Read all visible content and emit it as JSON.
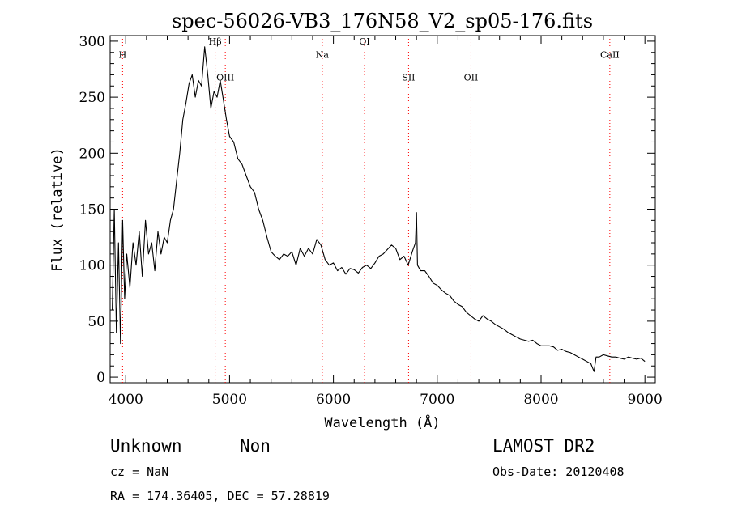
{
  "chart_data": {
    "type": "line",
    "title": "spec-56026-VB3_176N58_V2_sp05-176.fits",
    "xlabel": "Wavelength (Å)",
    "ylabel": "Flux (relative)",
    "xlim": [
      3850,
      9100
    ],
    "ylim": [
      -5,
      305
    ],
    "x_ticks": [
      4000,
      5000,
      6000,
      7000,
      8000,
      9000
    ],
    "y_ticks": [
      0,
      50,
      100,
      150,
      200,
      250,
      300
    ],
    "grid": false,
    "series": [
      {
        "x": [
          3870,
          3890,
          3910,
          3930,
          3950,
          3970,
          3990,
          4010,
          4040,
          4070,
          4100,
          4130,
          4160,
          4190,
          4220,
          4250,
          4280,
          4310,
          4340,
          4370,
          4400,
          4430,
          4460,
          4490,
          4520,
          4550,
          4580,
          4610,
          4640,
          4670,
          4700,
          4730,
          4760,
          4790,
          4820,
          4850,
          4880,
          4910,
          4940,
          4970,
          5000,
          5040,
          5080,
          5120,
          5160,
          5200,
          5240,
          5280,
          5320,
          5360,
          5400,
          5440,
          5480,
          5520,
          5560,
          5600,
          5640,
          5680,
          5720,
          5760,
          5800,
          5840,
          5880,
          5920,
          5960,
          6000,
          6040,
          6080,
          6120,
          6160,
          6200,
          6240,
          6280,
          6320,
          6360,
          6400,
          6440,
          6480,
          6520,
          6560,
          6600,
          6640,
          6680,
          6720,
          6760,
          6790,
          6800,
          6810,
          6840,
          6880,
          6920,
          6960,
          7000,
          7040,
          7080,
          7120,
          7160,
          7200,
          7240,
          7280,
          7320,
          7360,
          7400,
          7440,
          7480,
          7520,
          7560,
          7600,
          7640,
          7680,
          7720,
          7760,
          7800,
          7840,
          7880,
          7920,
          7960,
          8000,
          8040,
          8080,
          8120,
          8160,
          8200,
          8240,
          8280,
          8320,
          8360,
          8400,
          8440,
          8480,
          8510,
          8530,
          8560,
          8600,
          8640,
          8680,
          8720,
          8760,
          8800,
          8840,
          8880,
          8920,
          8960,
          9000
        ],
        "y": [
          60,
          150,
          40,
          120,
          30,
          140,
          70,
          110,
          80,
          120,
          100,
          130,
          90,
          140,
          110,
          120,
          95,
          130,
          110,
          125,
          120,
          140,
          150,
          175,
          200,
          230,
          245,
          262,
          270,
          250,
          265,
          260,
          295,
          270,
          240,
          255,
          250,
          265,
          248,
          230,
          215,
          210,
          195,
          190,
          180,
          170,
          165,
          150,
          140,
          125,
          112,
          108,
          105,
          110,
          108,
          112,
          100,
          115,
          108,
          115,
          110,
          123,
          118,
          105,
          100,
          102,
          95,
          98,
          92,
          97,
          96,
          93,
          98,
          100,
          97,
          102,
          108,
          110,
          114,
          118,
          115,
          105,
          108,
          100,
          112,
          120,
          147,
          100,
          95,
          95,
          90,
          84,
          82,
          78,
          75,
          73,
          68,
          65,
          63,
          58,
          55,
          52,
          50,
          55,
          52,
          50,
          47,
          45,
          43,
          40,
          38,
          36,
          34,
          33,
          32,
          33,
          30,
          28,
          28,
          28,
          27,
          24,
          25,
          23,
          22,
          20,
          18,
          16,
          14,
          12,
          5,
          18,
          18,
          20,
          19,
          18,
          18,
          17,
          16,
          18,
          17,
          16,
          17,
          14
        ]
      }
    ],
    "annotations": [
      {
        "label": "H",
        "x": 3970,
        "y": 285
      },
      {
        "label": "Hβ",
        "x": 4861,
        "y": 297
      },
      {
        "label": "OIII",
        "x": 4959,
        "y": 265
      },
      {
        "label": "Na",
        "x": 5893,
        "y": 285
      },
      {
        "label": "OI",
        "x": 6300,
        "y": 297
      },
      {
        "label": "SII",
        "x": 6724,
        "y": 265
      },
      {
        "label": "OII",
        "x": 7325,
        "y": 265
      },
      {
        "label": "CaII",
        "x": 8662,
        "y": 285
      }
    ]
  },
  "footer": {
    "class_text": "Unknown",
    "subclass_text": "Non",
    "survey": "LAMOST DR2",
    "cz": "cz = NaN",
    "obs_date": "Obs-Date: 20120408",
    "radec": "RA = 174.36405, DEC =  57.28819"
  },
  "colors": {
    "spectrum": "#000000",
    "line_markers": "#ff0000",
    "line_markers_dark": "#000000"
  }
}
